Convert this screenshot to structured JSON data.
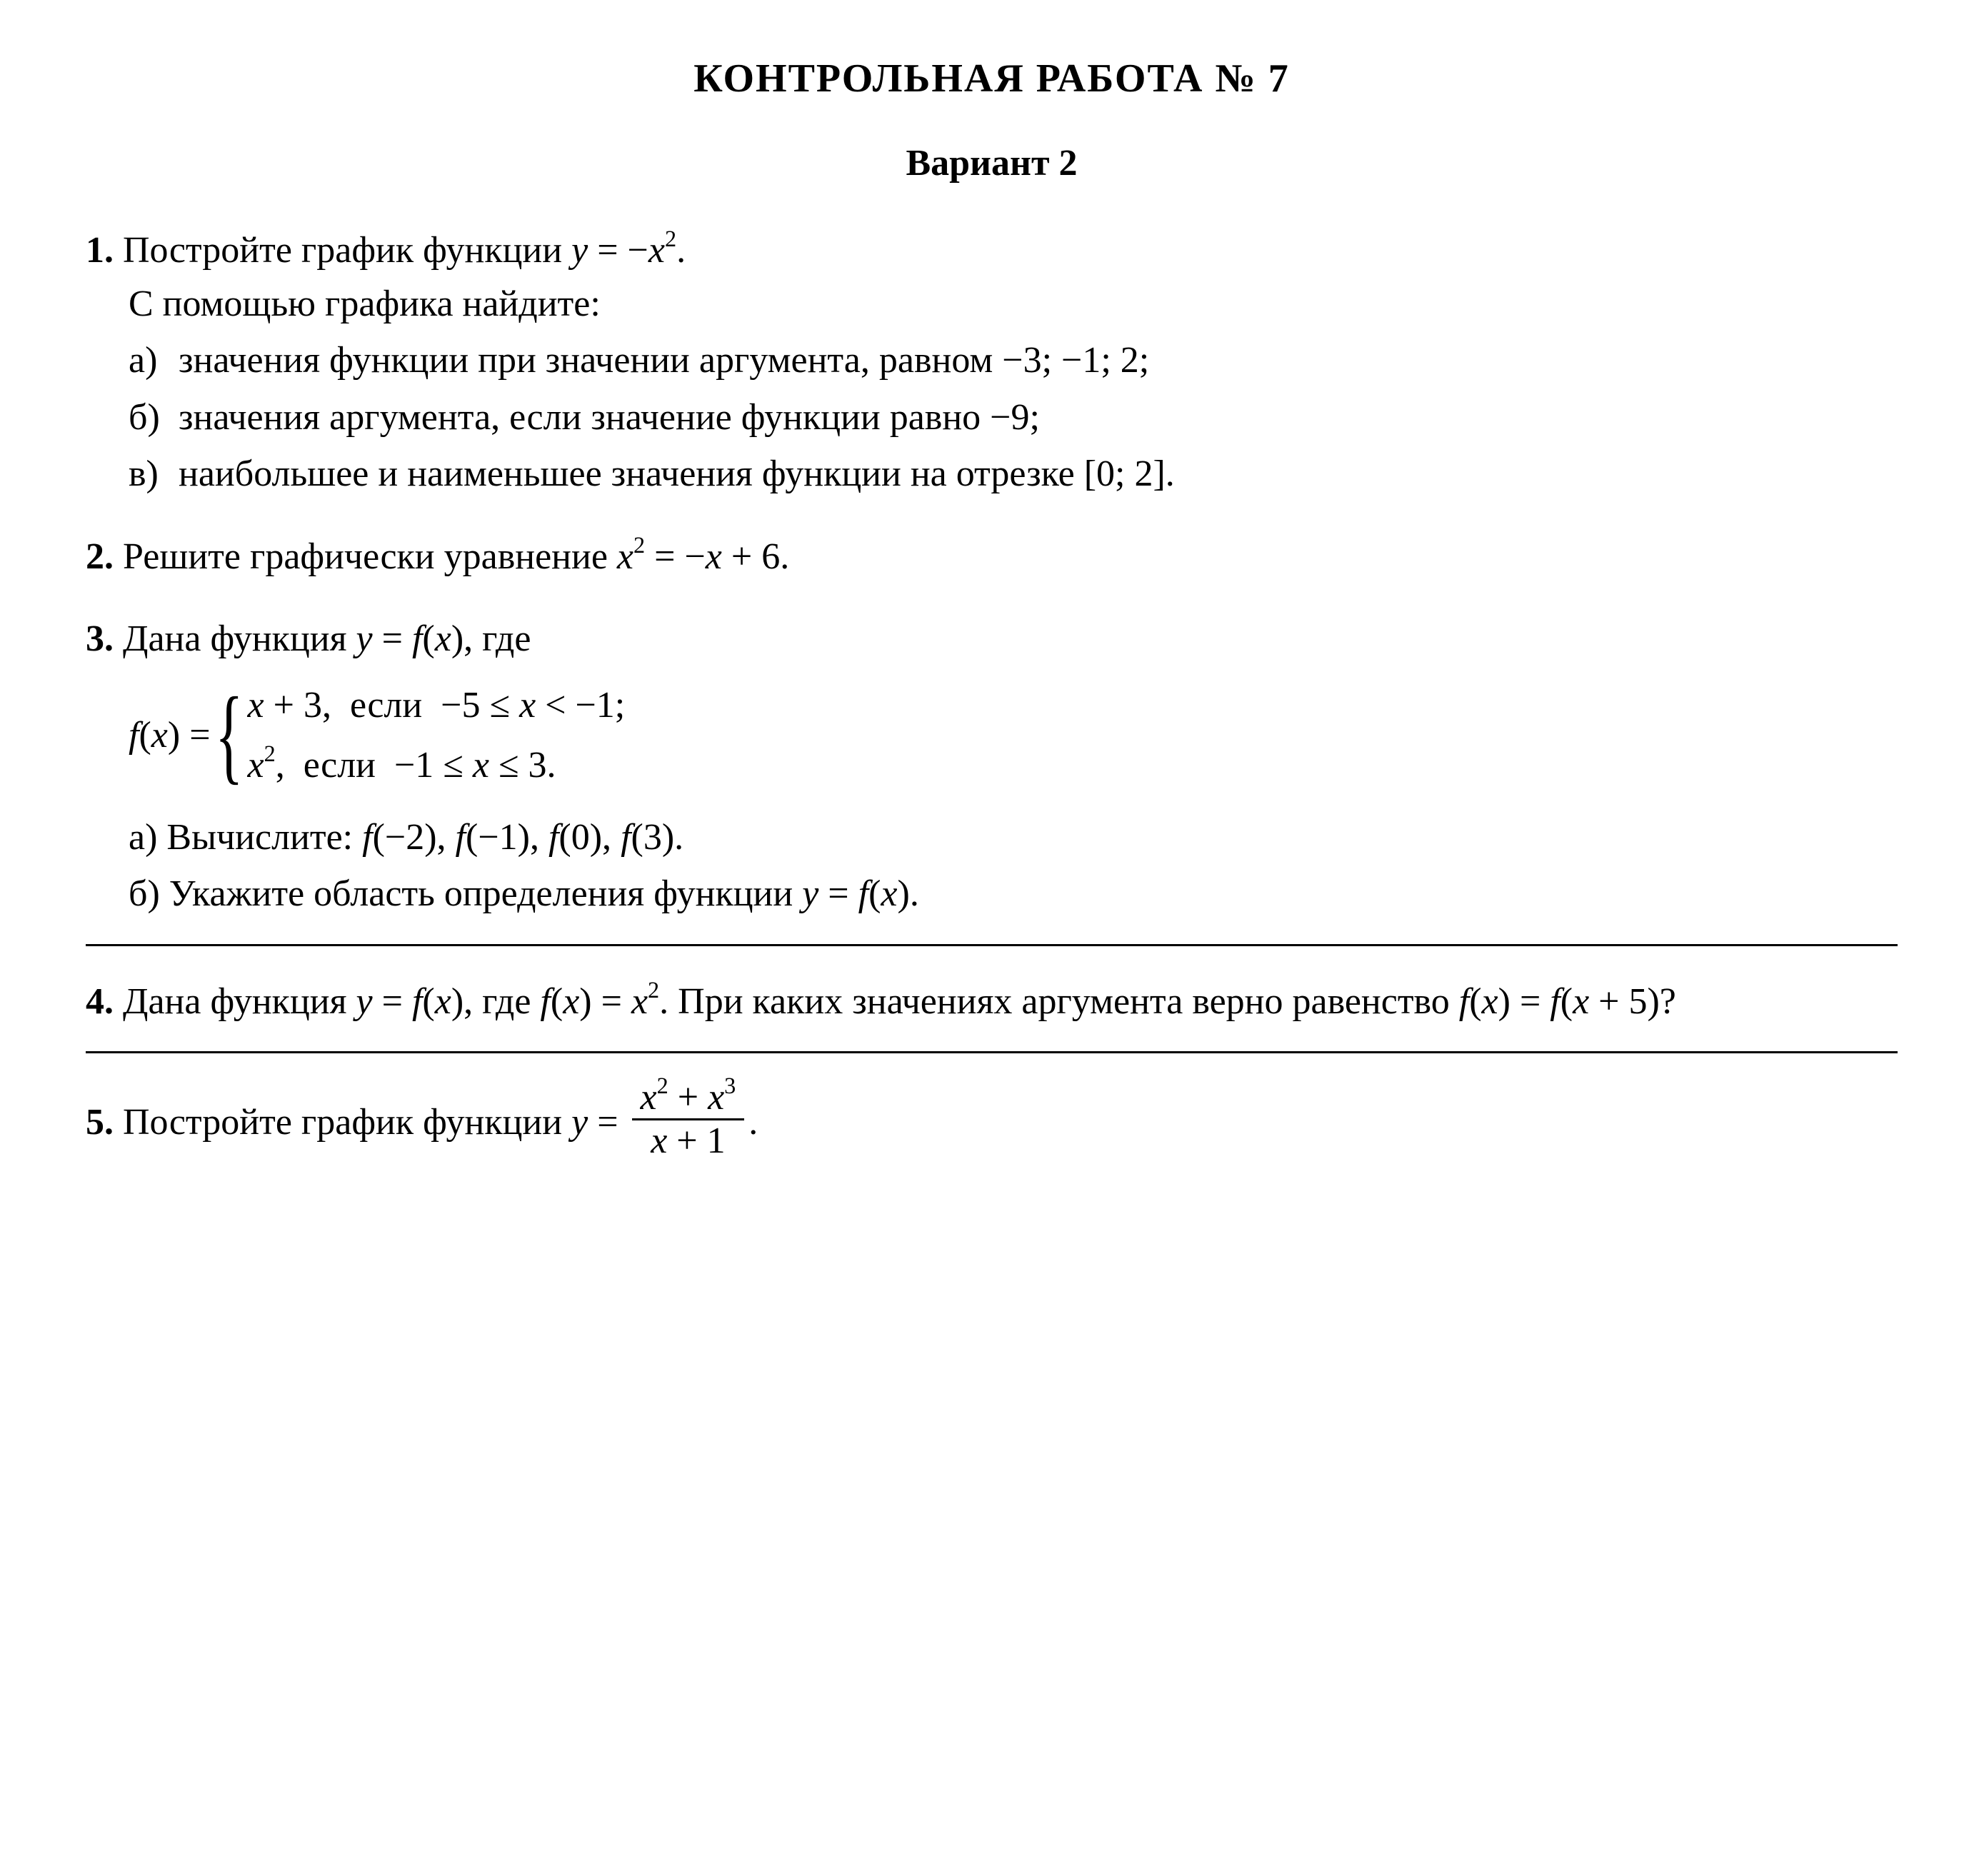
{
  "title": "КОНТРОЛЬНАЯ РАБОТА № 7",
  "variant": "Вариант 2",
  "p1": {
    "num": "1.",
    "lead_a": "Постройте график функции ",
    "eq": "y = −x²",
    "lead_b": ".",
    "sub_lead": "С помощью графика найдите:",
    "a": {
      "l": "а)",
      "t": "значения функции при значении аргумента, равном −3; −1; 2;"
    },
    "b": {
      "l": "б)",
      "t": "значения аргумента, если значение функции равно −9;"
    },
    "c": {
      "l": "в)",
      "t": "наибольшее и наименьшее значения функции на отрезке [0; 2]."
    }
  },
  "p2": {
    "num": "2.",
    "lead": "Решите графически уравнение ",
    "eq": "x² = −x + 6",
    "tail": "."
  },
  "p3": {
    "num": "3.",
    "lead": "Дана функция ",
    "eq1": "y = f(x)",
    "lead2": ", где",
    "pw_left": "f(x) =",
    "case1": "x + 3,  если  −5 ≤ x < −1;",
    "case2": "x²,  если  −1 ≤ x ≤ 3.",
    "a": {
      "l": "а)",
      "t": "Вычислите: f(−2), f(−1), f(0), f(3)."
    },
    "b": {
      "l": "б)",
      "t": "Укажите область определения функции y = f(x)."
    }
  },
  "p4": {
    "num": "4.",
    "t": "Дана функция y = f(x), где f(x) = x². При каких значениях аргумента верно равенство f(x) = f(x + 5)?"
  },
  "p5": {
    "num": "5.",
    "lead": "Постройте график функции ",
    "frac_num": "x² + x³",
    "frac_den": "x + 1",
    "tail": "."
  }
}
